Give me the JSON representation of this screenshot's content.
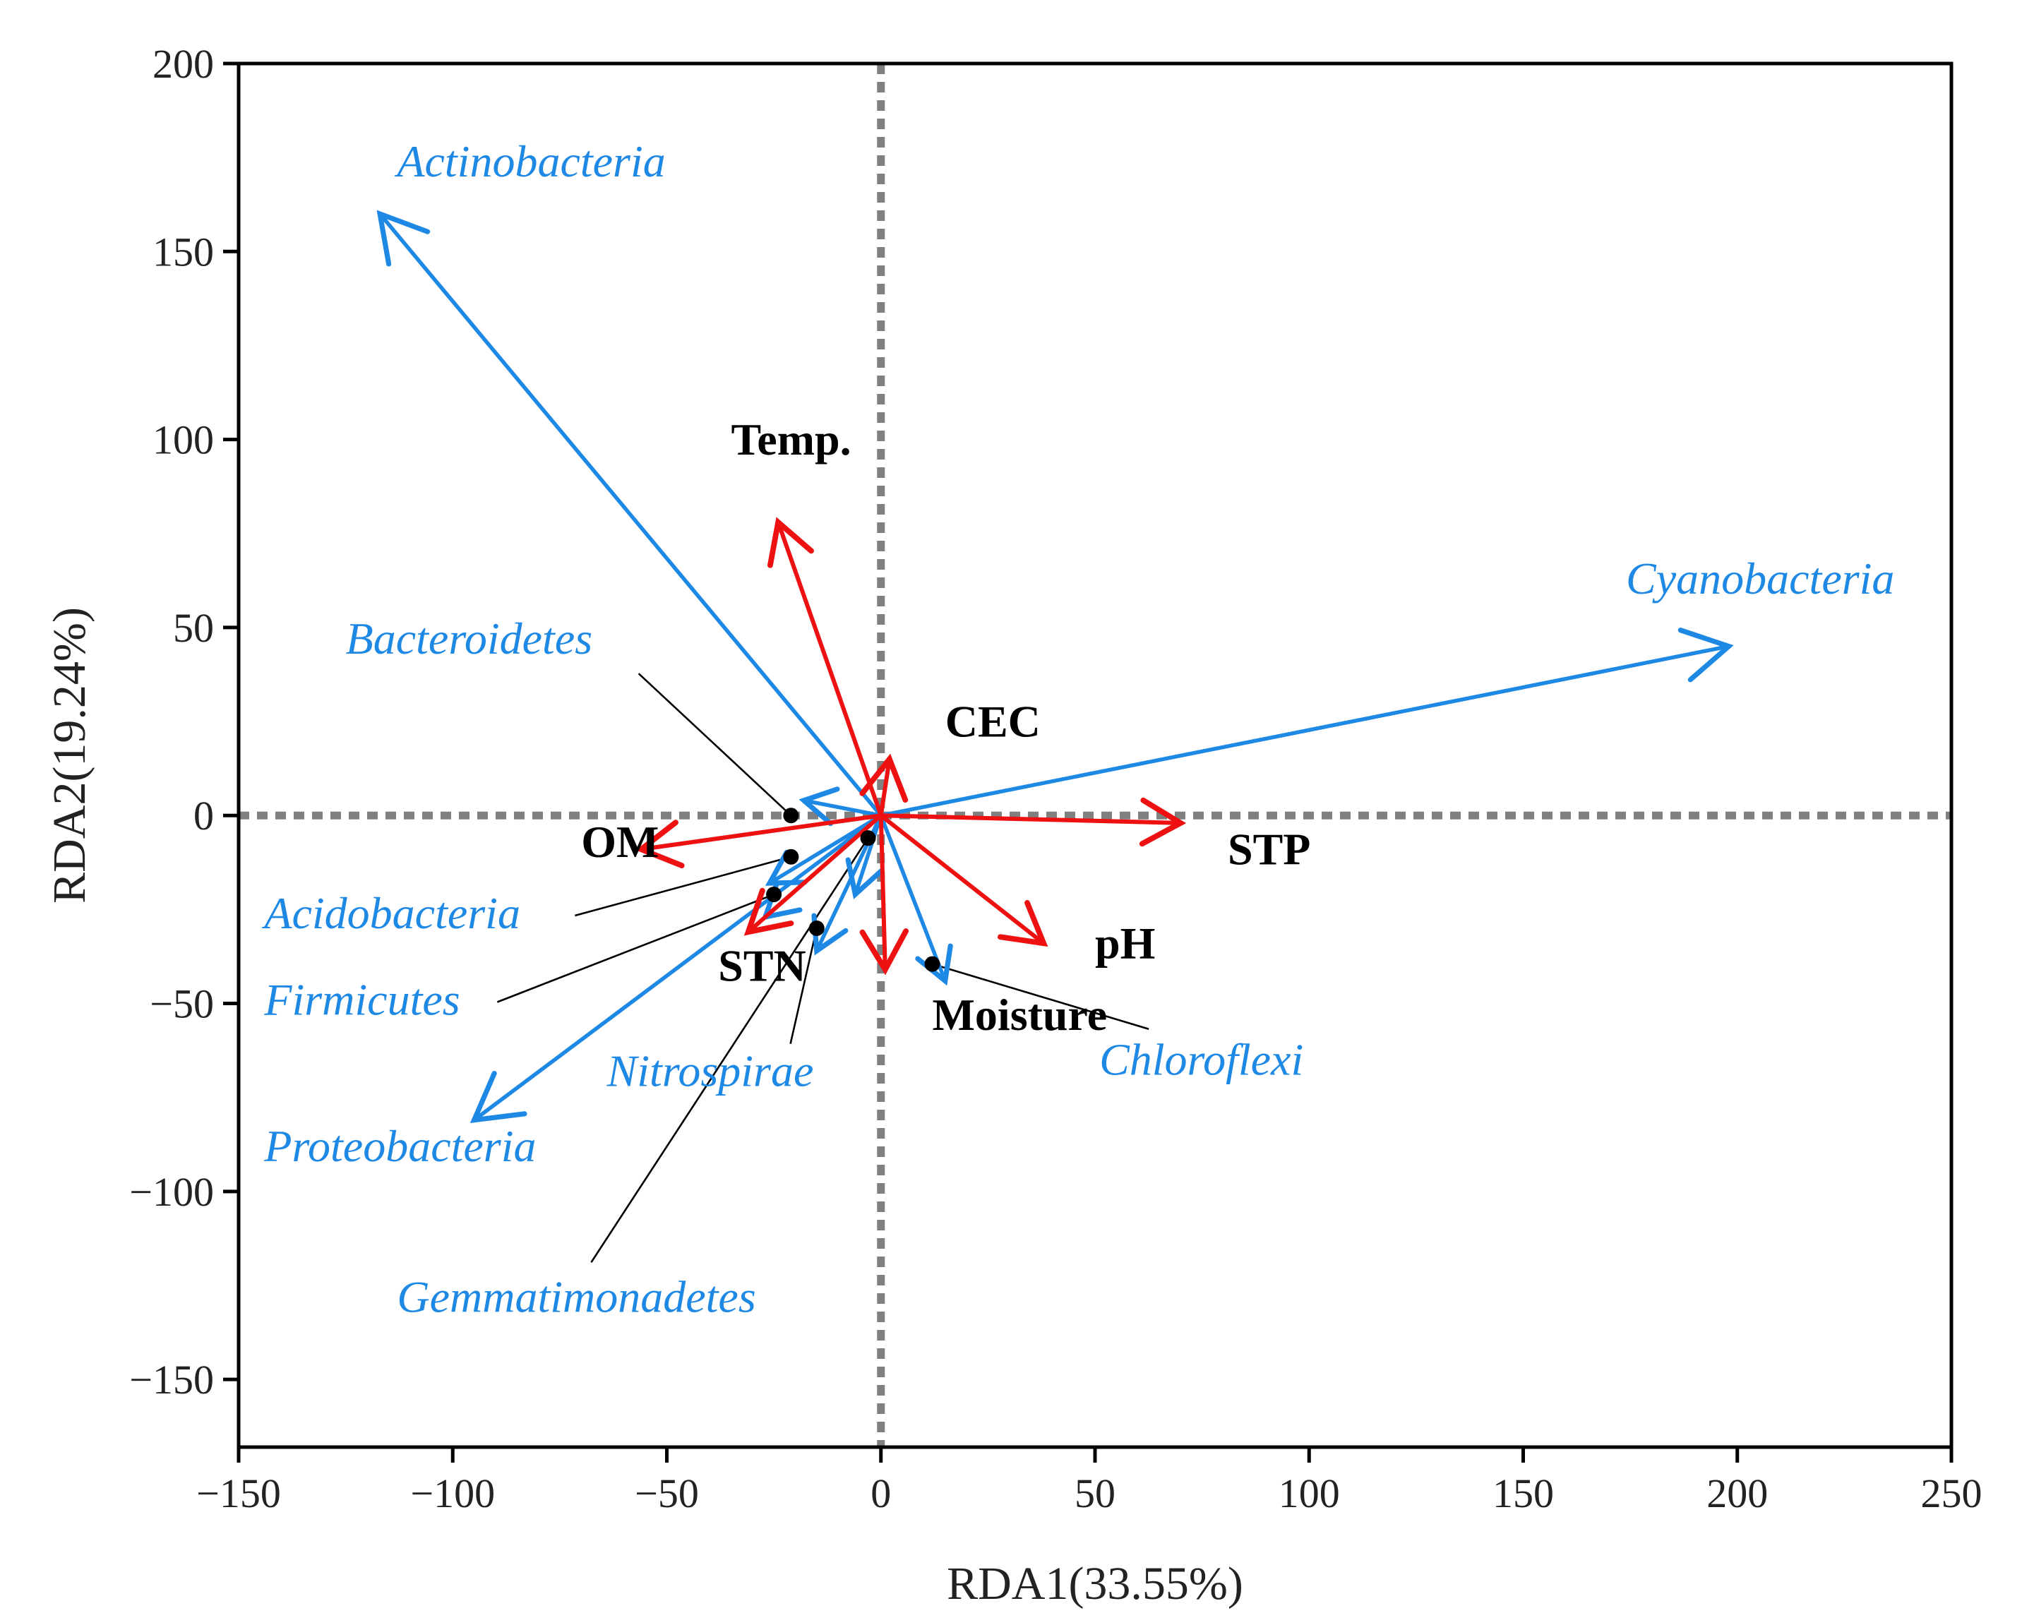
{
  "chart_data": {
    "type": "scatter",
    "subtype": "rda-biplot",
    "title": "",
    "xlabel": "RDA1(33.55%)",
    "ylabel": "RDA2(19.24%)",
    "xlim": [
      -150,
      250
    ],
    "ylim": [
      -168,
      200
    ],
    "xticks": [
      -150,
      -100,
      -50,
      0,
      50,
      100,
      150,
      200,
      250
    ],
    "yticks": [
      -150,
      -100,
      -50,
      0,
      50,
      100,
      150,
      200
    ],
    "xtick_labels": [
      "−150",
      "−100",
      "−50",
      "0",
      "50",
      "100",
      "150",
      "200",
      "250"
    ],
    "ytick_labels": [
      "−150",
      "−100",
      "−50",
      "0",
      "50",
      "100",
      "150",
      "200"
    ],
    "grid": false,
    "reference_lines": {
      "x": 0,
      "y": 0,
      "style": "dotted"
    },
    "colors": {
      "species": "#1e88e5",
      "environment": "#ee1111",
      "leader": "#000000",
      "reference": "#808080"
    },
    "origin": [
      0,
      0
    ],
    "species_series": {
      "name": "Bacterial phyla",
      "vectors": [
        {
          "label": "Actinobacteria",
          "x": -117,
          "y": 160,
          "label_at": [
            -113,
            170
          ]
        },
        {
          "label": "Cyanobacteria",
          "x": 198,
          "y": 45,
          "label_at": [
            174,
            59
          ]
        },
        {
          "label": "Proteobacteria",
          "x": -95,
          "y": -81,
          "label_at": [
            -144,
            -92
          ]
        },
        {
          "label": "Chloroflexi",
          "x": 15,
          "y": -44,
          "label_at": [
            51,
            -69
          ]
        },
        {
          "label": "Bacteroidetes",
          "x": -18,
          "y": 4,
          "label_at": [
            -125,
            43
          ],
          "point": [
            -21,
            0
          ]
        },
        {
          "label": "Acidobacteria",
          "x": -26,
          "y": -18,
          "label_at": [
            -144,
            -30
          ],
          "point": [
            -21,
            -11
          ]
        },
        {
          "label": "Firmicutes",
          "x": -27,
          "y": -27,
          "label_at": [
            -144,
            -53
          ],
          "point": [
            -25,
            -21
          ]
        },
        {
          "label": "Nitrospirae",
          "x": -15,
          "y": -36,
          "label_at": [
            -64,
            -72
          ],
          "point": [
            -15,
            -30
          ]
        },
        {
          "label": "Gemmatimonadetes",
          "x": -6,
          "y": -21,
          "label_at": [
            -113,
            -132
          ],
          "point": [
            -3,
            -6
          ]
        }
      ]
    },
    "environment_series": {
      "name": "Environmental factors",
      "vectors": [
        {
          "label": "Temp.",
          "x": -24,
          "y": 78,
          "label_at": [
            -35,
            96
          ]
        },
        {
          "label": "CEC",
          "x": 2,
          "y": 15,
          "label_at": [
            15,
            21
          ]
        },
        {
          "label": "OM",
          "x": -56,
          "y": -9,
          "label_at": [
            -70,
            -11
          ]
        },
        {
          "label": "STP",
          "x": 70,
          "y": -2,
          "label_at": [
            81,
            -13
          ]
        },
        {
          "label": "pH",
          "x": 38,
          "y": -34,
          "label_at": [
            50,
            -38
          ]
        },
        {
          "label": "STN",
          "x": -31,
          "y": -31,
          "label_at": [
            -38,
            -44
          ]
        },
        {
          "label": "Moisture",
          "x": 1,
          "y": -41,
          "label_at": [
            12,
            -57
          ]
        }
      ]
    }
  }
}
